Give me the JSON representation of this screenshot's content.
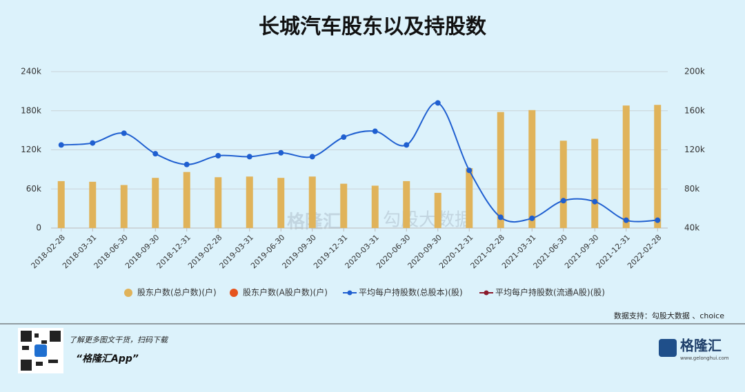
{
  "chart_data": {
    "type": "bar",
    "title": "长城汽车股东以及持股数",
    "categories": [
      "2018-02-28",
      "2018-03-31",
      "2018-06-30",
      "2018-09-30",
      "2018-12-31",
      "2019-02-28",
      "2019-03-31",
      "2019-06-30",
      "2019-09-30",
      "2019-12-31",
      "2020-03-31",
      "2020-06-30",
      "2020-09-30",
      "2020-12-31",
      "2021-02-28",
      "2021-03-31",
      "2021-06-30",
      "2021-09-30",
      "2021-12-31",
      "2022-02-28"
    ],
    "series": [
      {
        "name": "股东户数(总户数)(户)",
        "color": "#e0b35a",
        "type": "bar",
        "values": [
          72000,
          71000,
          66000,
          77000,
          86000,
          78000,
          79000,
          77000,
          79000,
          68000,
          65000,
          72000,
          54000,
          92000,
          178000,
          181000,
          134000,
          137000,
          188000,
          189000
        ]
      },
      {
        "name": "股东户数(A股户数)(户)",
        "color": "#e5531d",
        "type": "bar",
        "values": [
          null,
          null,
          null,
          null,
          null,
          null,
          null,
          null,
          null,
          null,
          null,
          null,
          null,
          null,
          null,
          null,
          null,
          null,
          null,
          null
        ]
      },
      {
        "name": "平均每户持股数(总股本)(股)",
        "color": "#1f5fd0",
        "type": "line",
        "axis": "y2",
        "values": [
          125000,
          127000,
          137000,
          116000,
          105000,
          114000,
          113000,
          117000,
          113000,
          133000,
          139000,
          125000,
          168000,
          99000,
          51000,
          50000,
          68000,
          67000,
          48000,
          48000
        ]
      },
      {
        "name": "平均每户持股数(流通A股)(股)",
        "color": "#8b1a2b",
        "type": "line",
        "axis": "y2",
        "values": [
          null,
          null,
          null,
          null,
          null,
          null,
          null,
          null,
          null,
          null,
          null,
          null,
          null,
          null,
          null,
          null,
          null,
          null,
          null,
          null
        ]
      }
    ],
    "ylim": [
      0,
      240000
    ],
    "yticks": [
      0,
      {
        "value": 60000,
        "label": "60k"
      },
      {
        "value": 120000,
        "label": "120k"
      },
      {
        "value": 180000,
        "label": "180k"
      },
      {
        "value": 240000,
        "label": "240k"
      }
    ],
    "y2lim": [
      40000,
      200000
    ],
    "y2ticks": [
      {
        "value": 40000,
        "label": "40k"
      },
      {
        "value": 80000,
        "label": "80k"
      },
      {
        "value": 120000,
        "label": "120k"
      },
      {
        "value": 160000,
        "label": "160k"
      },
      {
        "value": 200000,
        "label": "200k"
      }
    ],
    "grid": true,
    "legend": "bottom",
    "source": "数据支持：勾股大数据 、choice",
    "watermarks": [
      "格隆汇",
      "勾股大数据"
    ]
  },
  "footer": {
    "tagline": "了解更多图文干货，扫码下载",
    "app": "“格隆汇App”",
    "logo": "格隆汇",
    "site": "www.gelonghui.com"
  }
}
